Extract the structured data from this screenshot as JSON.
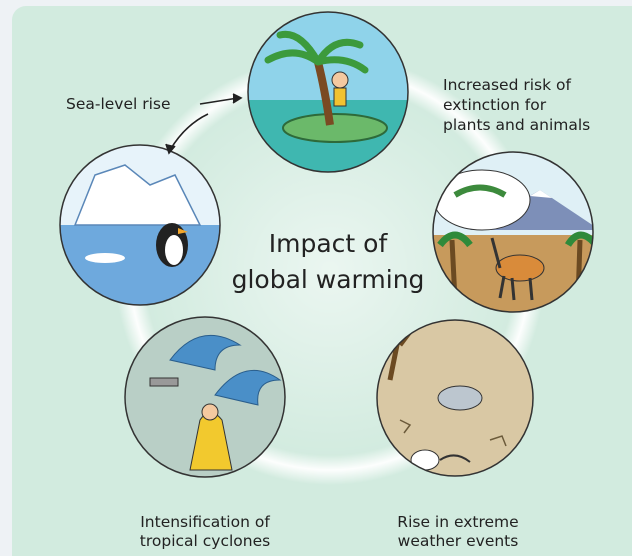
{
  "center_title": [
    "Impact of",
    "global warming"
  ],
  "nodes": [
    {
      "label": [
        "Sea-level rise"
      ]
    },
    {
      "label": [
        "Increased risk of",
        "extinction for",
        "plants and animals"
      ]
    },
    {
      "label": [
        "Rise in extreme",
        "weather events"
      ]
    },
    {
      "label": [
        "Intensification of",
        "tropical cyclones"
      ]
    }
  ]
}
